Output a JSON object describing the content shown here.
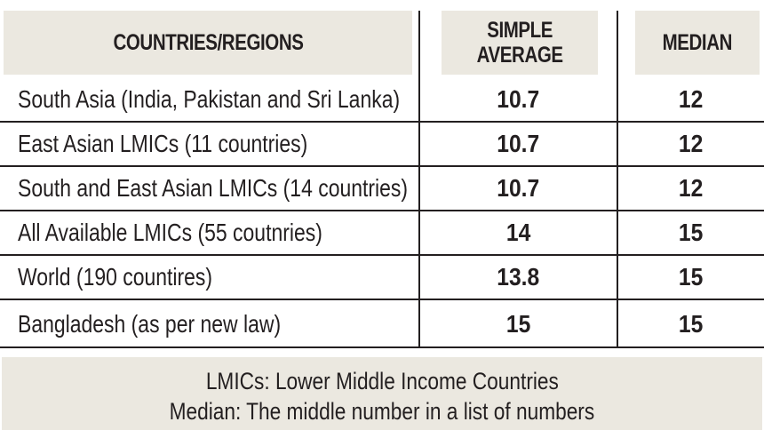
{
  "table": {
    "headers": {
      "country": "COUNTRIES/REGIONS",
      "average_line1": "SIMPLE",
      "average_line2": "AVERAGE",
      "median": "MEDIAN"
    },
    "rows": [
      {
        "country": "South Asia (India, Pakistan  and Sri Lanka)",
        "average": "10.7",
        "median": "12"
      },
      {
        "country": "East Asian LMICs (11 countries)",
        "average": "10.7",
        "median": "12"
      },
      {
        "country": "South and East Asian LMICs (14 countries)",
        "average": "10.7",
        "median": "12"
      },
      {
        "country": "All Available LMICs (55 coutnries)",
        "average": "14",
        "median": "15"
      },
      {
        "country": "World (190 countires)",
        "average": "13.8",
        "median": "15"
      },
      {
        "country": "Bangladesh (as per new law)",
        "average": "15",
        "median": "15"
      }
    ]
  },
  "footnote": {
    "line1": "LMICs: Lower Middle Income Countries",
    "line2": "Median: The middle number in a list of numbers"
  },
  "colors": {
    "header_background": "#ebe8e0",
    "text": "#231f20",
    "rule": "#231f20"
  }
}
